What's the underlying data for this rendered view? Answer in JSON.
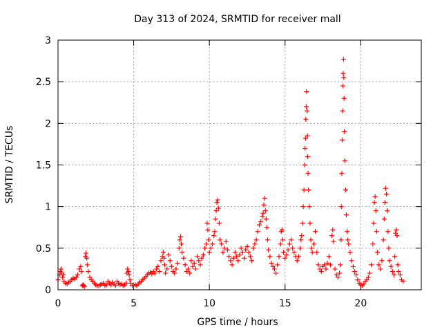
{
  "chart_data": {
    "type": "scatter",
    "title": "Day 313 of 2024, SRMTID for receiver mall",
    "xlabel": "GPS time / hours",
    "ylabel": "SRMTID / TECUs",
    "xlim": [
      0,
      24
    ],
    "ylim": [
      0,
      3
    ],
    "xticks": [
      0,
      5,
      10,
      15,
      20
    ],
    "yticks": [
      0,
      0.5,
      1,
      1.5,
      2,
      2.5,
      3
    ],
    "grid": true,
    "marker": "+",
    "color": "#ff0000",
    "series": [
      {
        "name": "SRMTID",
        "points": [
          [
            0.0,
            0.12
          ],
          [
            0.1,
            0.18
          ],
          [
            0.15,
            0.22
          ],
          [
            0.2,
            0.25
          ],
          [
            0.25,
            0.2
          ],
          [
            0.3,
            0.15
          ],
          [
            0.35,
            0.18
          ],
          [
            0.4,
            0.1
          ],
          [
            0.5,
            0.08
          ],
          [
            0.6,
            0.07
          ],
          [
            0.7,
            0.09
          ],
          [
            0.8,
            0.1
          ],
          [
            0.9,
            0.12
          ],
          [
            1.0,
            0.14
          ],
          [
            1.1,
            0.13
          ],
          [
            1.2,
            0.15
          ],
          [
            1.3,
            0.18
          ],
          [
            1.4,
            0.25
          ],
          [
            1.5,
            0.28
          ],
          [
            1.55,
            0.22
          ],
          [
            1.6,
            0.05
          ],
          [
            1.65,
            0.06
          ],
          [
            1.7,
            0.05
          ],
          [
            1.75,
            0.04
          ],
          [
            1.8,
            0.4
          ],
          [
            1.85,
            0.44
          ],
          [
            1.9,
            0.38
          ],
          [
            1.95,
            0.3
          ],
          [
            2.0,
            0.22
          ],
          [
            2.1,
            0.15
          ],
          [
            2.2,
            0.12
          ],
          [
            2.3,
            0.1
          ],
          [
            2.4,
            0.08
          ],
          [
            2.5,
            0.06
          ],
          [
            2.6,
            0.05
          ],
          [
            2.7,
            0.05
          ],
          [
            2.8,
            0.06
          ],
          [
            2.9,
            0.07
          ],
          [
            3.0,
            0.08
          ],
          [
            3.1,
            0.05
          ],
          [
            3.2,
            0.06
          ],
          [
            3.3,
            0.1
          ],
          [
            3.4,
            0.08
          ],
          [
            3.5,
            0.06
          ],
          [
            3.6,
            0.09
          ],
          [
            3.7,
            0.07
          ],
          [
            3.8,
            0.05
          ],
          [
            3.9,
            0.1
          ],
          [
            4.0,
            0.08
          ],
          [
            4.1,
            0.06
          ],
          [
            4.2,
            0.07
          ],
          [
            4.3,
            0.05
          ],
          [
            4.4,
            0.06
          ],
          [
            4.5,
            0.08
          ],
          [
            4.55,
            0.2
          ],
          [
            4.6,
            0.25
          ],
          [
            4.65,
            0.22
          ],
          [
            4.7,
            0.18
          ],
          [
            4.75,
            0.12
          ],
          [
            4.8,
            0.08
          ],
          [
            4.9,
            0.05
          ],
          [
            5.0,
            0.05
          ],
          [
            5.1,
            0.06
          ],
          [
            5.2,
            0.05
          ],
          [
            5.3,
            0.07
          ],
          [
            5.4,
            0.09
          ],
          [
            5.5,
            0.1
          ],
          [
            5.6,
            0.12
          ],
          [
            5.7,
            0.14
          ],
          [
            5.8,
            0.16
          ],
          [
            5.9,
            0.18
          ],
          [
            6.0,
            0.2
          ],
          [
            6.1,
            0.21
          ],
          [
            6.2,
            0.19
          ],
          [
            6.3,
            0.22
          ],
          [
            6.4,
            0.2
          ],
          [
            6.5,
            0.25
          ],
          [
            6.6,
            0.28
          ],
          [
            6.7,
            0.22
          ],
          [
            6.8,
            0.35
          ],
          [
            6.9,
            0.4
          ],
          [
            6.95,
            0.45
          ],
          [
            7.0,
            0.38
          ],
          [
            7.05,
            0.3
          ],
          [
            7.1,
            0.2
          ],
          [
            7.2,
            0.25
          ],
          [
            7.3,
            0.42
          ],
          [
            7.4,
            0.35
          ],
          [
            7.5,
            0.28
          ],
          [
            7.6,
            0.22
          ],
          [
            7.7,
            0.2
          ],
          [
            7.8,
            0.25
          ],
          [
            7.9,
            0.32
          ],
          [
            8.0,
            0.5
          ],
          [
            8.05,
            0.6
          ],
          [
            8.1,
            0.64
          ],
          [
            8.15,
            0.55
          ],
          [
            8.2,
            0.45
          ],
          [
            8.3,
            0.38
          ],
          [
            8.4,
            0.3
          ],
          [
            8.5,
            0.22
          ],
          [
            8.6,
            0.25
          ],
          [
            8.7,
            0.2
          ],
          [
            8.8,
            0.35
          ],
          [
            8.9,
            0.28
          ],
          [
            9.0,
            0.32
          ],
          [
            9.1,
            0.25
          ],
          [
            9.2,
            0.4
          ],
          [
            9.3,
            0.35
          ],
          [
            9.4,
            0.3
          ],
          [
            9.5,
            0.38
          ],
          [
            9.6,
            0.42
          ],
          [
            9.7,
            0.5
          ],
          [
            9.8,
            0.55
          ],
          [
            9.85,
            0.8
          ],
          [
            9.9,
            0.72
          ],
          [
            9.95,
            0.6
          ],
          [
            10.0,
            0.45
          ],
          [
            10.1,
            0.5
          ],
          [
            10.2,
            0.55
          ],
          [
            10.3,
            0.65
          ],
          [
            10.35,
            0.7
          ],
          [
            10.4,
            0.85
          ],
          [
            10.45,
            0.95
          ],
          [
            10.5,
            1.05
          ],
          [
            10.55,
            1.08
          ],
          [
            10.6,
            0.98
          ],
          [
            10.65,
            0.8
          ],
          [
            10.7,
            0.6
          ],
          [
            10.8,
            0.55
          ],
          [
            10.9,
            0.45
          ],
          [
            11.0,
            0.5
          ],
          [
            11.1,
            0.58
          ],
          [
            11.2,
            0.48
          ],
          [
            11.3,
            0.4
          ],
          [
            11.4,
            0.35
          ],
          [
            11.5,
            0.3
          ],
          [
            11.6,
            0.38
          ],
          [
            11.7,
            0.45
          ],
          [
            11.8,
            0.4
          ],
          [
            11.9,
            0.35
          ],
          [
            12.0,
            0.42
          ],
          [
            12.1,
            0.5
          ],
          [
            12.2,
            0.45
          ],
          [
            12.3,
            0.38
          ],
          [
            12.4,
            0.48
          ],
          [
            12.5,
            0.52
          ],
          [
            12.6,
            0.45
          ],
          [
            12.7,
            0.4
          ],
          [
            12.8,
            0.35
          ],
          [
            12.9,
            0.5
          ],
          [
            13.0,
            0.55
          ],
          [
            13.1,
            0.6
          ],
          [
            13.2,
            0.7
          ],
          [
            13.3,
            0.78
          ],
          [
            13.4,
            0.82
          ],
          [
            13.5,
            0.88
          ],
          [
            13.55,
            0.92
          ],
          [
            13.6,
            1.02
          ],
          [
            13.65,
            1.1
          ],
          [
            13.7,
            0.95
          ],
          [
            13.75,
            0.85
          ],
          [
            13.8,
            0.75
          ],
          [
            13.85,
            0.6
          ],
          [
            13.9,
            0.48
          ],
          [
            14.0,
            0.4
          ],
          [
            14.1,
            0.32
          ],
          [
            14.2,
            0.28
          ],
          [
            14.3,
            0.25
          ],
          [
            14.4,
            0.2
          ],
          [
            14.5,
            0.3
          ],
          [
            14.6,
            0.4
          ],
          [
            14.7,
            0.55
          ],
          [
            14.75,
            0.7
          ],
          [
            14.8,
            0.72
          ],
          [
            14.85,
            0.6
          ],
          [
            14.9,
            0.45
          ],
          [
            15.0,
            0.38
          ],
          [
            15.1,
            0.42
          ],
          [
            15.2,
            0.48
          ],
          [
            15.3,
            0.55
          ],
          [
            15.4,
            0.6
          ],
          [
            15.5,
            0.5
          ],
          [
            15.6,
            0.45
          ],
          [
            15.7,
            0.4
          ],
          [
            15.8,
            0.35
          ],
          [
            15.9,
            0.4
          ],
          [
            16.0,
            0.5
          ],
          [
            16.05,
            0.6
          ],
          [
            16.1,
            0.65
          ],
          [
            16.15,
            0.8
          ],
          [
            16.2,
            1.0
          ],
          [
            16.25,
            1.2
          ],
          [
            16.3,
            1.5
          ],
          [
            16.32,
            1.7
          ],
          [
            16.35,
            1.82
          ],
          [
            16.37,
            2.05
          ],
          [
            16.4,
            2.2
          ],
          [
            16.42,
            2.38
          ],
          [
            16.45,
            2.15
          ],
          [
            16.48,
            1.85
          ],
          [
            16.5,
            1.6
          ],
          [
            16.52,
            1.4
          ],
          [
            16.55,
            1.2
          ],
          [
            16.6,
            1.0
          ],
          [
            16.65,
            0.8
          ],
          [
            16.7,
            0.6
          ],
          [
            16.75,
            0.5
          ],
          [
            16.8,
            0.45
          ],
          [
            16.9,
            0.55
          ],
          [
            17.0,
            0.7
          ],
          [
            17.1,
            0.45
          ],
          [
            17.2,
            0.3
          ],
          [
            17.3,
            0.25
          ],
          [
            17.4,
            0.22
          ],
          [
            17.5,
            0.28
          ],
          [
            17.6,
            0.3
          ],
          [
            17.7,
            0.25
          ],
          [
            17.8,
            0.32
          ],
          [
            17.9,
            0.4
          ],
          [
            18.0,
            0.3
          ],
          [
            18.1,
            0.65
          ],
          [
            18.15,
            0.72
          ],
          [
            18.2,
            0.58
          ],
          [
            18.3,
            0.25
          ],
          [
            18.4,
            0.18
          ],
          [
            18.5,
            0.15
          ],
          [
            18.6,
            0.2
          ],
          [
            18.65,
            0.3
          ],
          [
            18.7,
            0.6
          ],
          [
            18.72,
            1.0
          ],
          [
            18.75,
            1.4
          ],
          [
            18.78,
            1.8
          ],
          [
            18.8,
            2.15
          ],
          [
            18.82,
            2.45
          ],
          [
            18.84,
            2.6
          ],
          [
            18.86,
            2.77
          ],
          [
            18.88,
            2.55
          ],
          [
            18.9,
            2.3
          ],
          [
            18.92,
            1.9
          ],
          [
            18.95,
            1.55
          ],
          [
            19.0,
            1.2
          ],
          [
            19.05,
            0.9
          ],
          [
            19.1,
            0.7
          ],
          [
            19.15,
            0.6
          ],
          [
            19.2,
            0.55
          ],
          [
            19.3,
            0.45
          ],
          [
            19.4,
            0.35
          ],
          [
            19.5,
            0.28
          ],
          [
            19.6,
            0.22
          ],
          [
            19.7,
            0.18
          ],
          [
            19.8,
            0.12
          ],
          [
            19.9,
            0.08
          ],
          [
            20.0,
            0.06
          ],
          [
            20.1,
            0.05
          ],
          [
            20.2,
            0.07
          ],
          [
            20.3,
            0.1
          ],
          [
            20.4,
            0.12
          ],
          [
            20.5,
            0.15
          ],
          [
            20.6,
            0.2
          ],
          [
            20.7,
            0.3
          ],
          [
            20.8,
            0.55
          ],
          [
            20.85,
            0.8
          ],
          [
            20.9,
            1.05
          ],
          [
            20.95,
            1.12
          ],
          [
            21.0,
            0.95
          ],
          [
            21.05,
            0.7
          ],
          [
            21.1,
            0.45
          ],
          [
            21.2,
            0.3
          ],
          [
            21.3,
            0.25
          ],
          [
            21.4,
            0.35
          ],
          [
            21.5,
            0.6
          ],
          [
            21.55,
            0.85
          ],
          [
            21.6,
            1.05
          ],
          [
            21.65,
            1.22
          ],
          [
            21.7,
            1.15
          ],
          [
            21.75,
            0.95
          ],
          [
            21.8,
            0.7
          ],
          [
            21.85,
            0.5
          ],
          [
            21.9,
            0.35
          ],
          [
            22.0,
            0.28
          ],
          [
            22.1,
            0.22
          ],
          [
            22.2,
            0.18
          ],
          [
            22.25,
            0.4
          ],
          [
            22.3,
            0.68
          ],
          [
            22.35,
            0.72
          ],
          [
            22.4,
            0.65
          ],
          [
            22.45,
            0.3
          ],
          [
            22.5,
            0.22
          ],
          [
            22.6,
            0.18
          ],
          [
            22.7,
            0.12
          ],
          [
            22.8,
            0.1
          ]
        ]
      }
    ]
  }
}
